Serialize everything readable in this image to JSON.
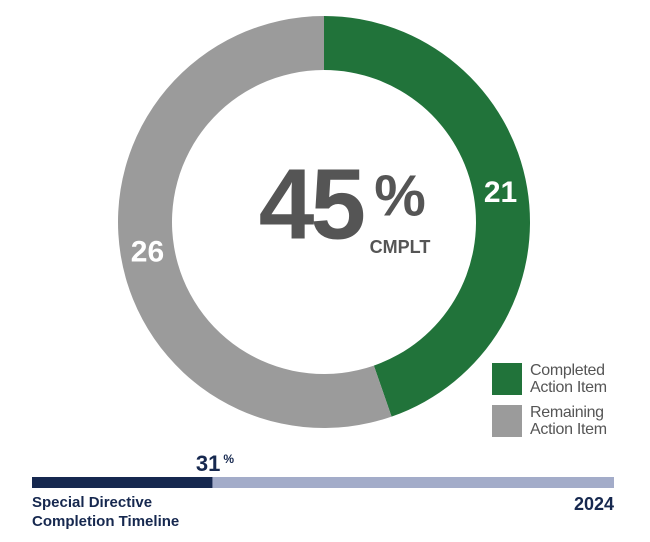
{
  "chart_data": [
    {
      "type": "donut",
      "series": [
        {
          "name": "Completed Action Item",
          "color": "#21733a",
          "value": 21
        },
        {
          "name": "Remaining Action Item",
          "color": "#9b9b9b",
          "value": 26
        }
      ],
      "center_value": 45,
      "center_unit": "%",
      "center_caption": "CMPLT"
    },
    {
      "type": "progress",
      "value": 31,
      "unit": "%",
      "xlim": [
        0,
        100
      ],
      "title_lines": [
        "Special Directive",
        "Completion Timeline"
      ],
      "end_label": "2024",
      "color": "#16284f",
      "track_color": "#a3acc9"
    }
  ]
}
